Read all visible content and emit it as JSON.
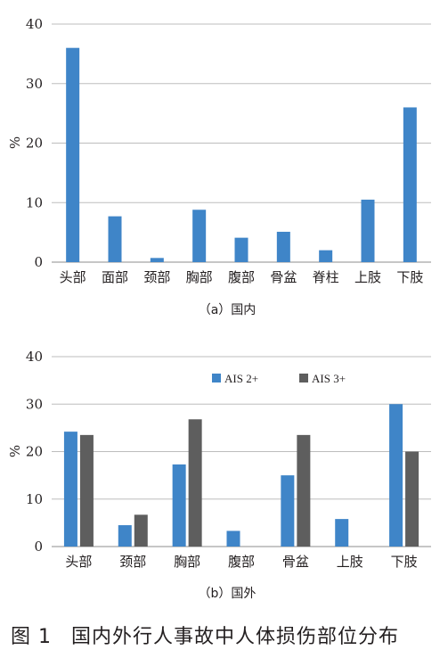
{
  "colors": {
    "series_blue": "#3f85c8",
    "series_gray": "#5e5e5e",
    "grid": "#bdbdbd",
    "axis": "#8c8c8c"
  },
  "chart_data": [
    {
      "type": "bar",
      "subtitle": "（a）国内",
      "ylabel": "%",
      "ylim": [
        0,
        40
      ],
      "yticks": [
        0,
        10,
        20,
        30,
        40
      ],
      "grid": true,
      "categories": [
        "头部",
        "面部",
        "颈部",
        "胸部",
        "腹部",
        "骨盆",
        "脊柱",
        "上肢",
        "下肢"
      ],
      "series": [
        {
          "values": [
            36,
            7.7,
            0.7,
            8.8,
            4.1,
            5.1,
            2.0,
            10.5,
            26
          ]
        }
      ]
    },
    {
      "type": "bar",
      "subtitle": "（b）国外",
      "ylabel": "%",
      "ylim": [
        0,
        40
      ],
      "yticks": [
        0,
        10,
        20,
        30,
        40
      ],
      "grid": true,
      "legend_position": "top-right",
      "categories": [
        "头部",
        "颈部",
        "胸部",
        "腹部",
        "骨盆",
        "上肢",
        "下肢"
      ],
      "series": [
        {
          "name": "AIS 2+",
          "values": [
            24.2,
            4.5,
            17.3,
            3.3,
            15.0,
            5.8,
            30.0
          ]
        },
        {
          "name": "AIS 3+",
          "values": [
            23.5,
            6.7,
            26.8,
            null,
            23.5,
            null,
            20.0
          ]
        }
      ]
    }
  ],
  "caption": {
    "number": "图 1",
    "text": "国内外行人事故中人体损伤部位分布"
  }
}
